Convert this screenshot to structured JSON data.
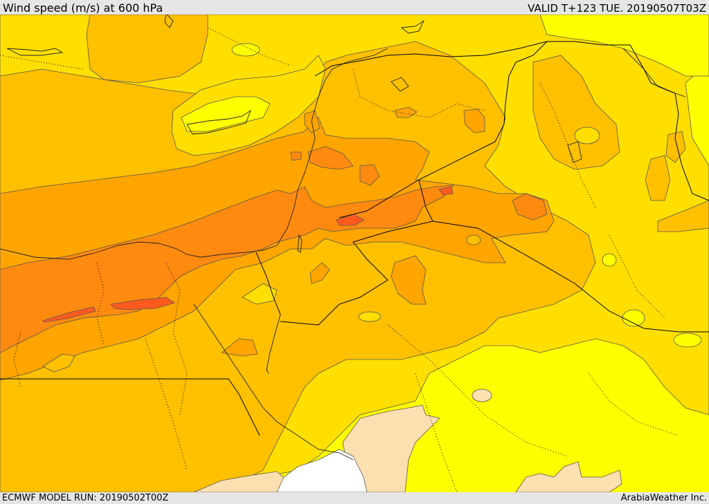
{
  "header": {
    "title": "Wind speed (m/s) at 600 hPa",
    "valid_time": "VALID T+123 TUE. 20190507T03Z"
  },
  "footer": {
    "model_run": "ECMWF MODEL RUN: 20190502T00Z",
    "credit": "ArabiaWeather Inc."
  },
  "colors": {
    "band_0": "#fde0b0",
    "band_1": "#ffffff",
    "band_2": "#ffff00",
    "band_3": "#ffdf00",
    "band_4": "#ffc000",
    "band_5": "#ffa500",
    "band_6": "#ff8a10",
    "band_7": "#ff7000",
    "band_8": "#ff5a1e"
  }
}
